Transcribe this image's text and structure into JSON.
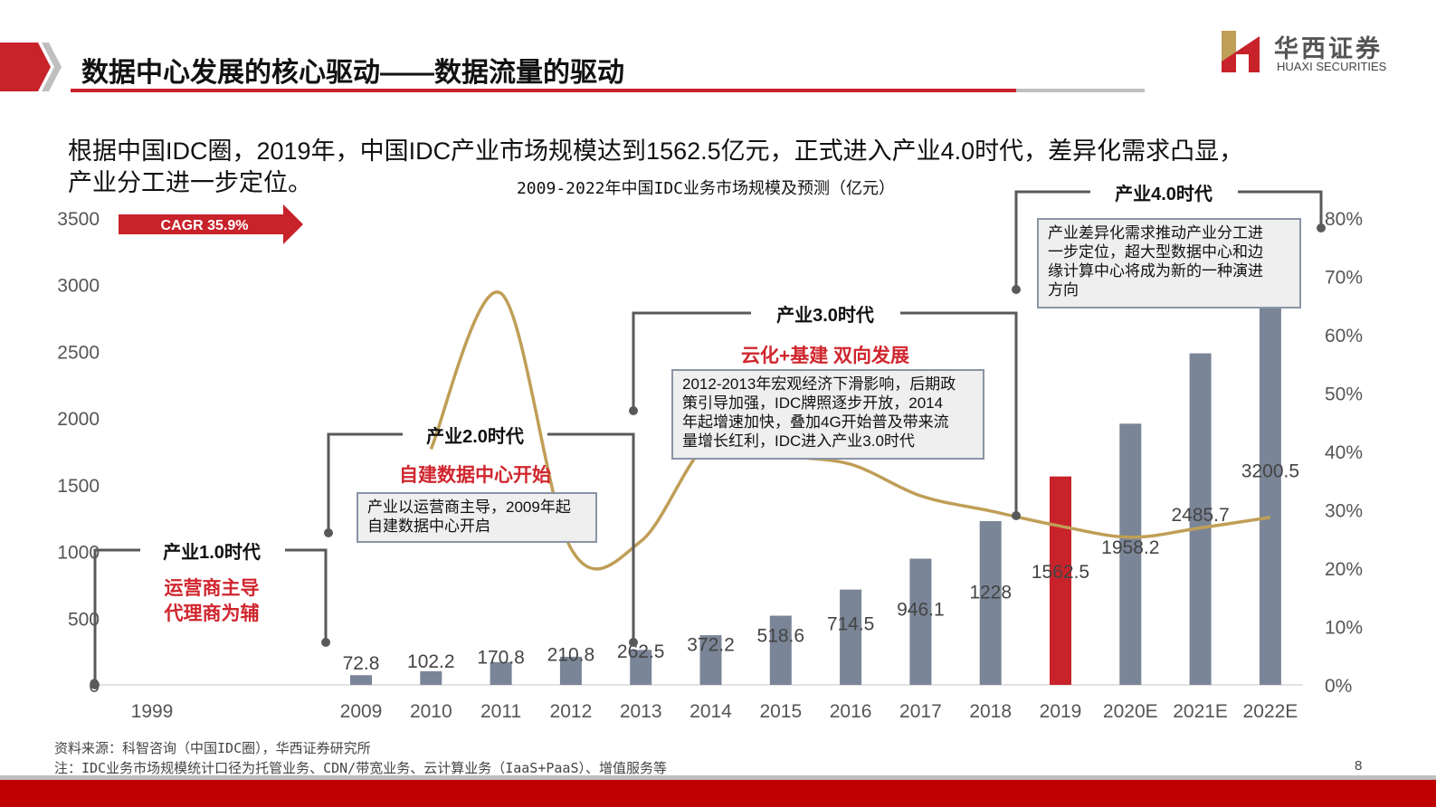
{
  "header": {
    "title": "数据中心发展的核心驱动——数据流量的驱动",
    "logo_cn": "华西证券",
    "logo_en": "HUAXI SECURITIES"
  },
  "intro": {
    "line1": "根据中国IDC圈，2019年，中国IDC产业市场规模达到1562.5亿元，正式进入产业4.0时代，差异化需求凸显，",
    "line2": "产业分工进一步定位。"
  },
  "cagr": "CAGR  35.9%",
  "eras": [
    {
      "label": "产业1.0时代",
      "subtitle1": "运营商主导",
      "subtitle2": "代理商为辅"
    },
    {
      "label": "产业2.0时代",
      "subtitle1": "自建数据中心开始",
      "note": [
        "产业以运营商主导，2009年起",
        "自建数据中心开启"
      ]
    },
    {
      "label": "产业3.0时代",
      "subtitle1": "云化+基建 双向发展",
      "note": [
        "2012-2013年宏观经济下滑影响，后期政",
        "策引导加强，IDC牌照逐步开放，2014",
        "年起增速加快，叠加4G开始普及带来流",
        "量增长红利，IDC进入产业3.0时代"
      ]
    },
    {
      "label": "产业4.0时代",
      "note": [
        "产业差异化需求推动产业分工进",
        "一步定位，超大型数据中心和边",
        "缘计算中心将成为新的一种演进",
        "方向"
      ]
    }
  ],
  "colors": {
    "bar": "#7a8597",
    "highlight_bar": "#c8222a",
    "line": "#bf9e56",
    "brand_red": "#c00000",
    "bracket": "#595959"
  },
  "chart_data": {
    "type": "bar+line",
    "title": "2009-2022年中国IDC业务市场规模及预测（亿元）",
    "categories": [
      "1999",
      "2009",
      "2010",
      "2011",
      "2012",
      "2013",
      "2014",
      "2015",
      "2016",
      "2017",
      "2018",
      "2019",
      "2020E",
      "2021E",
      "2022E"
    ],
    "bar_series": {
      "values": [
        null,
        72.8,
        102.2,
        170.8,
        210.8,
        262.5,
        372.2,
        518.6,
        714.5,
        946.1,
        1228,
        1562.5,
        1958.2,
        2485.7,
        3200.5
      ],
      "value_labels": [
        "",
        "72.8",
        "102.2",
        "170.8",
        "210.8",
        "262.5",
        "372.2",
        "518.6",
        "714.5",
        "946.1",
        "1228",
        "1562.5",
        "1958.2",
        "2485.7",
        "3200.5"
      ],
      "highlight": "2019"
    },
    "line_series": {
      "axis": "right",
      "values_pct": [
        null,
        null,
        40.4,
        67.1,
        23.4,
        24.6,
        41.8,
        39.3,
        37.8,
        32.4,
        29.8,
        27.2,
        25.3,
        26.9,
        28.7
      ]
    },
    "y_left": {
      "ylim": [
        0,
        3500
      ],
      "ticks": [
        "0",
        "500",
        "1000",
        "1500",
        "2000",
        "2500",
        "3000",
        "3500"
      ]
    },
    "y_right": {
      "ylim": [
        0,
        80
      ],
      "ticks": [
        "0%",
        "10%",
        "20%",
        "30%",
        "40%",
        "50%",
        "60%",
        "70%",
        "80%"
      ]
    },
    "grid": false
  },
  "footer": {
    "source": "资料来源：科智咨询（中国IDC圈），华西证券研究所",
    "note": "注：IDC业务市场规模统计口径为托管业务、CDN/带宽业务、云计算业务（IaaS+PaaS）、增值服务等",
    "page": "8"
  }
}
